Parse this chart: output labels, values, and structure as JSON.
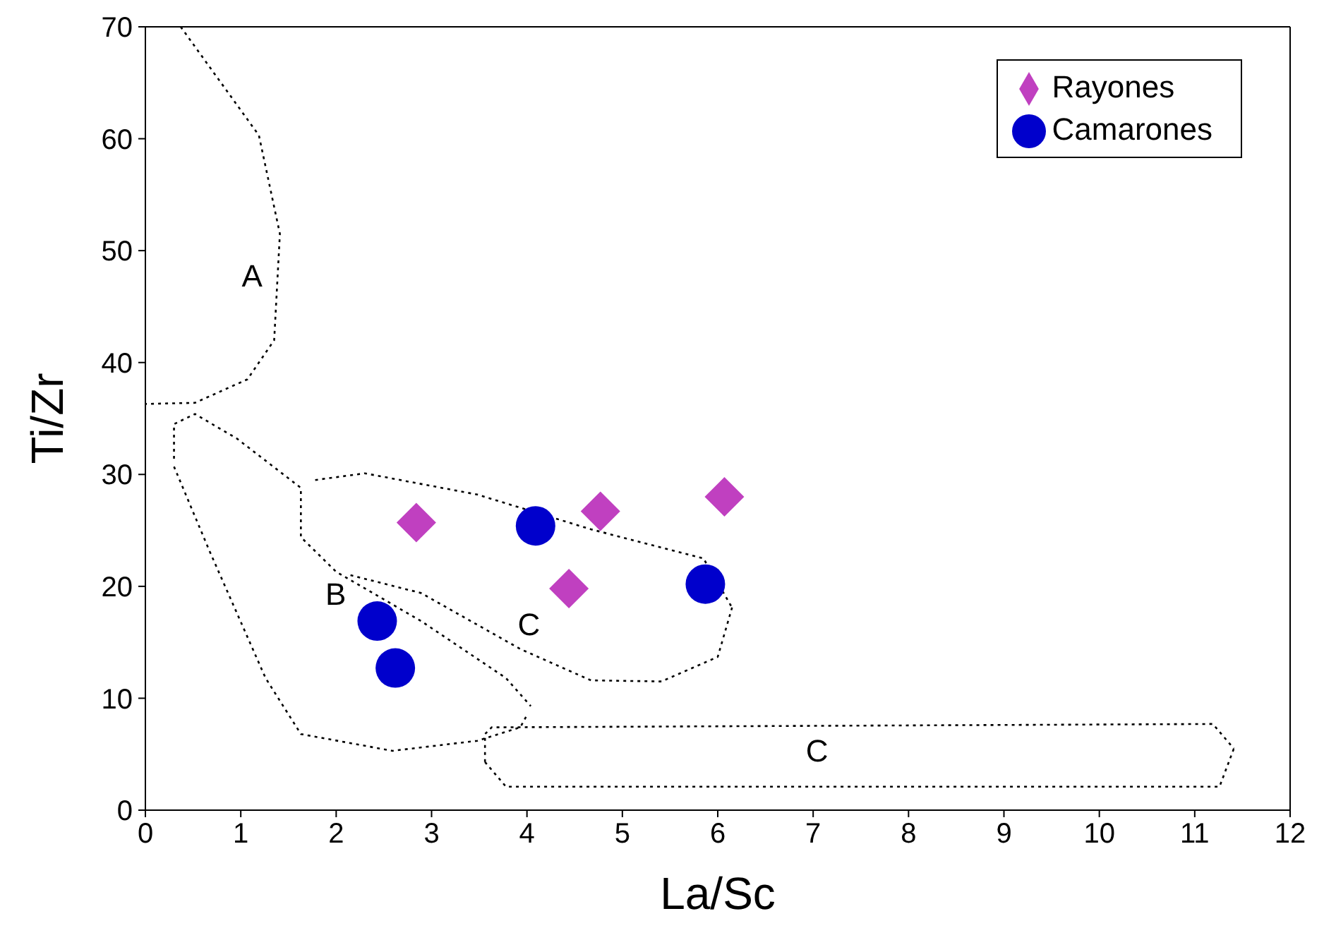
{
  "chart_data": {
    "type": "scatter",
    "xlabel": "La/Sc",
    "ylabel": "Ti/Zr",
    "xlim": [
      0,
      12
    ],
    "ylim": [
      0,
      70
    ],
    "xticks": [
      0,
      1,
      2,
      3,
      4,
      5,
      6,
      7,
      8,
      9,
      10,
      11,
      12
    ],
    "yticks": [
      0,
      10,
      20,
      30,
      40,
      50,
      60,
      70
    ],
    "legend": "top right",
    "series": [
      {
        "name": "Rayones",
        "type": "scatter",
        "marker": "diamond",
        "color": "#c040c0",
        "x": [
          2.84,
          4.77,
          6.07,
          4.44
        ],
        "values": [
          25.7,
          26.7,
          28.0,
          19.8
        ]
      },
      {
        "name": "Camarones",
        "type": "scatter",
        "marker": "circle",
        "color": "#0000cc",
        "x": [
          4.09,
          5.87,
          2.43,
          2.62
        ],
        "values": [
          25.4,
          20.2,
          16.9,
          12.7
        ]
      },
      {
        "name": "A",
        "type": "line",
        "marker": "none",
        "line_style": "dotted",
        "color": "#000000",
        "x": [
          0.37,
          1.19,
          1.41,
          1.35,
          1.07,
          0.52,
          0
        ],
        "values": [
          70,
          60.3,
          51.5,
          42,
          38.5,
          36.4,
          36.3
        ]
      },
      {
        "name": "B",
        "type": "line",
        "marker": "none",
        "line_style": "dotted",
        "color": "#000000",
        "x": [
          0.3,
          0.3,
          0.52,
          0.96,
          1.63,
          1.63,
          2.0,
          2.89,
          3.78,
          4.04
        ],
        "values": [
          31.4,
          34.5,
          35.4,
          33.2,
          28.8,
          24.4,
          21.3,
          16.9,
          11.8,
          9.3
        ]
      },
      {
        "type": "line",
        "marker": "none",
        "line_style": "dotted",
        "color": "#000000",
        "x": [
          0.3,
          0.67,
          1.26,
          1.63,
          2.59,
          3.48,
          3.93,
          4.0
        ],
        "values": [
          30.7,
          23.2,
          11.8,
          6.8,
          5.3,
          6.2,
          7.4,
          8.5
        ]
      },
      {
        "name": "C",
        "type": "line",
        "marker": "none",
        "line_style": "dotted",
        "color": "#000000",
        "x": [
          2.15,
          2.89,
          3.93,
          4.67,
          5.41,
          6.0,
          6.15
        ],
        "values": [
          21.0,
          19.4,
          14.4,
          11.6,
          11.5,
          13.7,
          18.1
        ]
      },
      {
        "type": "line",
        "marker": "none",
        "line_style": "dotted",
        "color": "#000000",
        "x": [
          1.78,
          2.3,
          3.48,
          4.67,
          5.85,
          6.15
        ],
        "values": [
          29.5,
          30.1,
          28.2,
          25.1,
          22.5,
          18.1
        ]
      },
      {
        "name": "C",
        "type": "line",
        "marker": "none",
        "line_style": "dotted",
        "color": "#000000",
        "x": [
          3.56,
          3.56,
          3.63,
          11.19,
          11.41
        ],
        "values": [
          4.3,
          6.8,
          7.4,
          7.7,
          5.5
        ]
      },
      {
        "type": "line",
        "marker": "none",
        "line_style": "dotted",
        "color": "#000000",
        "x": [
          3.56,
          3.78,
          11.26,
          11.41
        ],
        "values": [
          4.3,
          2.1,
          2.1,
          5.5
        ]
      }
    ]
  }
}
